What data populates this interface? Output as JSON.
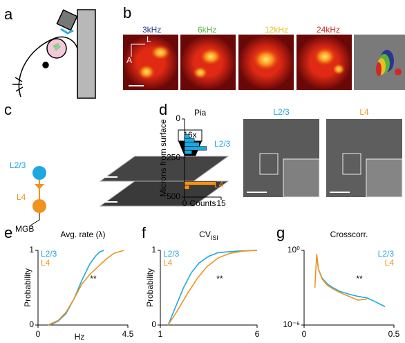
{
  "panel_labels": [
    "a",
    "b",
    "c",
    "d",
    "e",
    "f",
    "g"
  ],
  "tonotopy": {
    "labels": [
      "3kHz",
      "6kHz",
      "12kHz",
      "24kHz"
    ],
    "colors": [
      "#2b3590",
      "#5ab03c",
      "#e8c020",
      "#d02828"
    ],
    "axis_labels": [
      "L",
      "A"
    ]
  },
  "schematic": {
    "objective": "16x",
    "layers": [
      "L2/3",
      "L4"
    ],
    "colors": [
      "#1ea8e0",
      "#f0921e"
    ],
    "input": "MGB"
  },
  "images": {
    "labels": [
      "L2/3",
      "L4"
    ],
    "colors": [
      "#1ea8e0",
      "#f0921e"
    ]
  },
  "chart_data": [
    {
      "type": "histogram",
      "annotation": "Pia",
      "xlabel": "Counts",
      "ylabel": "Microns from surface",
      "xlim": [
        0,
        15
      ],
      "xticks": [
        0,
        15
      ],
      "ylim": [
        0,
        500
      ],
      "yticks": [
        0,
        250,
        500
      ],
      "series": [
        {
          "name": "L2/3",
          "color": "#1ea8e0",
          "bins": [
            100,
            125,
            150,
            175,
            200,
            225
          ],
          "values": [
            2,
            4,
            6,
            9,
            3
          ]
        },
        {
          "name": "L4",
          "color": "#f0921e",
          "bins": [
            400,
            425,
            450
          ],
          "values": [
            13,
            2
          ]
        }
      ]
    },
    {
      "type": "line",
      "title": "Avg. rate (λ)",
      "xlabel": "Hz",
      "ylabel": "Probability",
      "annotation": "**",
      "xlim": [
        0,
        4.5
      ],
      "xticks": [
        0,
        4.5
      ],
      "ylim": [
        0,
        1
      ],
      "yticks": [
        0,
        1
      ],
      "legend": "upper left",
      "series": [
        {
          "name": "L2/3",
          "color": "#1ea8e0",
          "x": [
            0.6,
            1.0,
            1.4,
            1.8,
            2.2,
            2.6,
            2.9,
            3.1,
            3.3
          ],
          "values": [
            0,
            0.05,
            0.15,
            0.35,
            0.6,
            0.82,
            0.93,
            0.98,
            1
          ]
        },
        {
          "name": "L4",
          "color": "#f0921e",
          "x": [
            0.5,
            1.0,
            1.4,
            1.8,
            2.2,
            2.6,
            3.0,
            3.4,
            3.8,
            4.3
          ],
          "values": [
            0,
            0.06,
            0.17,
            0.35,
            0.55,
            0.68,
            0.78,
            0.88,
            0.96,
            1
          ]
        }
      ]
    },
    {
      "type": "line",
      "title": "CV",
      "title_sub": "ISI",
      "ylabel": "Probability",
      "annotation": "**",
      "xlim": [
        1,
        6
      ],
      "xticks": [
        1,
        6
      ],
      "ylim": [
        0,
        1
      ],
      "yticks": [
        0,
        1
      ],
      "legend": "upper left",
      "series": [
        {
          "name": "L2/3",
          "color": "#1ea8e0",
          "x": [
            1.4,
            1.8,
            2.2,
            2.6,
            3.0,
            3.5,
            4.0,
            5.0,
            6
          ],
          "values": [
            0,
            0.25,
            0.5,
            0.7,
            0.83,
            0.92,
            0.97,
            0.99,
            1
          ]
        },
        {
          "name": "L4",
          "color": "#f0921e",
          "x": [
            1.4,
            1.9,
            2.4,
            2.9,
            3.4,
            4.0,
            4.6,
            5.3,
            6
          ],
          "values": [
            0,
            0.2,
            0.42,
            0.62,
            0.78,
            0.9,
            0.96,
            0.99,
            1
          ]
        }
      ]
    },
    {
      "type": "line",
      "title": "Crosscorr.",
      "annotation": "**",
      "log_y": true,
      "xlim": [
        0,
        0.5
      ],
      "xticks": [
        0,
        0.5
      ],
      "ylim": [
        1e-06,
        1
      ],
      "yticks": [
        {
          "value": 1e-06,
          "label": "10⁻⁶"
        },
        {
          "value": 1,
          "label": "10⁰"
        }
      ],
      "legend": "upper right",
      "series": [
        {
          "name": "L2/3",
          "color": "#1ea8e0",
          "x": [
            0.07,
            0.08,
            0.1,
            0.13,
            0.16,
            0.2,
            0.25,
            0.3,
            0.35,
            0.4,
            0.45
          ],
          "values": [
            0.4,
            0.03,
            0.006,
            0.002,
            0.001,
            0.0005,
            0.0003,
            0.0002,
            0.00015,
            7e-05,
            3e-05
          ]
        },
        {
          "name": "L4",
          "color": "#f0921e",
          "x": [
            0.06,
            0.07,
            0.08,
            0.1,
            0.13,
            0.16,
            0.2,
            0.25,
            0.3,
            0.35
          ],
          "values": [
            0.001,
            0.5,
            0.03,
            0.005,
            0.0015,
            0.0008,
            0.0004,
            0.0002,
            0.0001,
            0.00012
          ]
        }
      ]
    }
  ]
}
